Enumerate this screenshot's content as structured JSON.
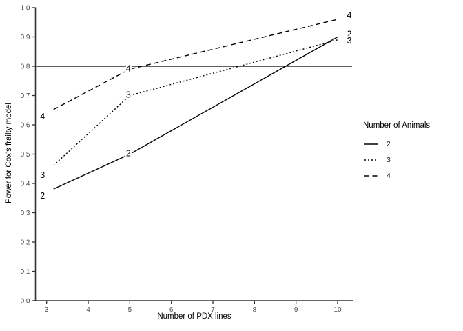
{
  "chart_data": {
    "type": "line",
    "x": [
      3,
      5,
      10
    ],
    "series": [
      {
        "name": "2",
        "linestyle": "solid",
        "values": [
          0.37,
          0.5,
          0.9
        ]
      },
      {
        "name": "3",
        "linestyle": "dotted",
        "values": [
          0.44,
          0.7,
          0.89
        ]
      },
      {
        "name": "4",
        "linestyle": "dashed",
        "values": [
          0.64,
          0.79,
          0.96
        ]
      }
    ],
    "point_labels": [
      "2",
      "3",
      "4"
    ],
    "reference_line_y": 0.8,
    "title": "",
    "xlabel": "Number of PDX lines",
    "ylabel": "Power for Cox's frailty model",
    "xticks": [
      3,
      4,
      5,
      6,
      7,
      8,
      9,
      10
    ],
    "yticks": [
      "0.0",
      "0.1",
      "0.2",
      "0.3",
      "0.4",
      "0.5",
      "0.6",
      "0.7",
      "0.8",
      "0.9",
      "1.0"
    ],
    "xlim": [
      2.7,
      10.35
    ],
    "ylim": [
      0.0,
      1.0
    ],
    "grid": "off",
    "legend": {
      "title": "Number of Animals",
      "position": "right",
      "entries": [
        {
          "label": "2",
          "linestyle": "solid"
        },
        {
          "label": "3",
          "linestyle": "dotted"
        },
        {
          "label": "4",
          "linestyle": "dashed"
        }
      ]
    },
    "colors": {
      "line": "#000000",
      "axis": "#333333",
      "tick_label": "#4d4d4d",
      "background": "#ffffff"
    }
  }
}
